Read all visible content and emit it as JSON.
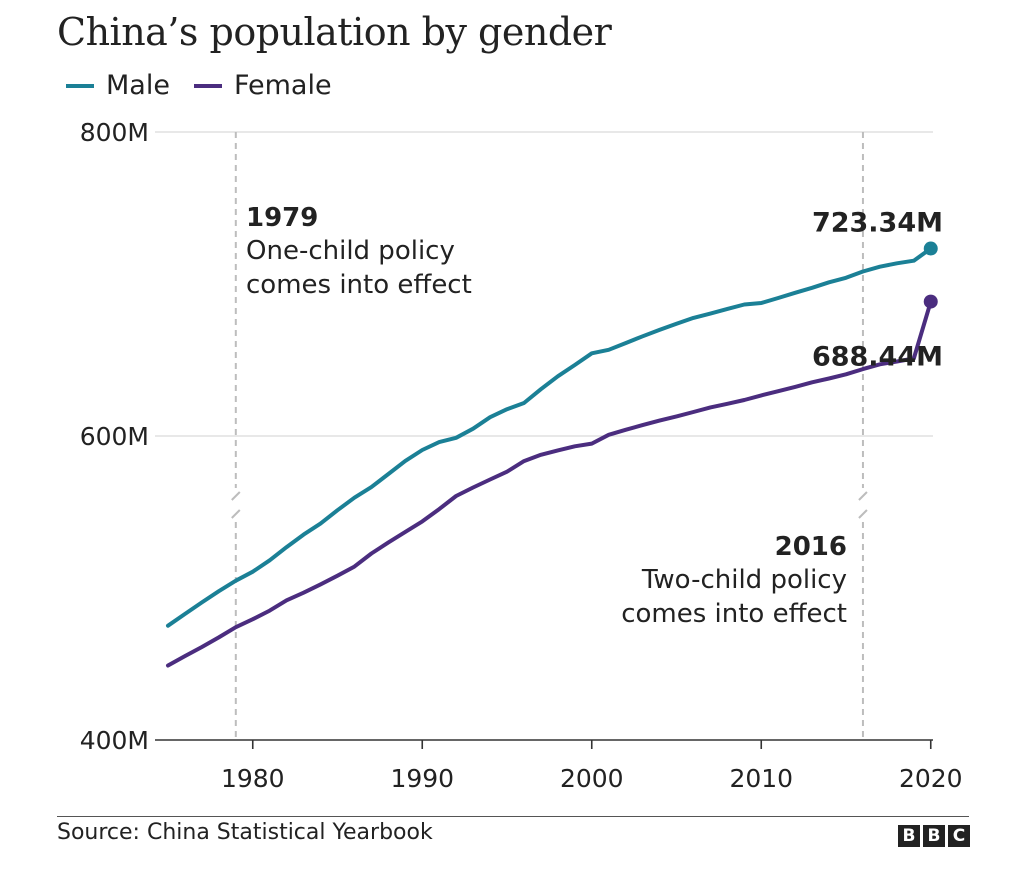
{
  "title": "China’s population by gender",
  "source": "Source: China Statistical Yearbook",
  "logo_letters": [
    "B",
    "B",
    "C"
  ],
  "colors": {
    "male": "#1b8096",
    "female": "#4b2d7f",
    "grid": "#d9d9d9",
    "annotation_line": "#bdbdbd",
    "text": "#222222"
  },
  "chart_data": {
    "type": "line",
    "ylim": [
      400,
      800
    ],
    "xlim": [
      1975,
      2020
    ],
    "y_ticks": [
      400,
      600,
      800
    ],
    "y_tick_labels": [
      "400M",
      "600M",
      "800M"
    ],
    "x_ticks": [
      1980,
      1990,
      2000,
      2010,
      2020
    ],
    "x_tick_labels": [
      "1980",
      "1990",
      "2000",
      "2010",
      "2020"
    ],
    "y_axis_break": true,
    "grid": true,
    "legend_position": "top-left",
    "series": [
      {
        "name": "Male",
        "key": "male",
        "x": [
          1975,
          1976,
          1977,
          1978,
          1979,
          1980,
          1981,
          1982,
          1983,
          1984,
          1985,
          1986,
          1987,
          1988,
          1989,
          1990,
          1991,
          1992,
          1993,
          1994,
          1995,
          1996,
          1997,
          1998,
          1999,
          2000,
          2001,
          2002,
          2003,
          2004,
          2005,
          2006,
          2007,
          2008,
          2009,
          2010,
          2011,
          2012,
          2013,
          2014,
          2015,
          2016,
          2017,
          2018,
          2019,
          2020
        ],
        "y": [
          475.2,
          482.9,
          490.5,
          497.9,
          504.8,
          510.7,
          518.2,
          526.9,
          535.1,
          542.4,
          551.2,
          559.4,
          566.4,
          575.0,
          583.6,
          590.8,
          596.0,
          598.8,
          604.8,
          612.4,
          617.6,
          621.7,
          630.8,
          639.3,
          646.7,
          654.4,
          656.7,
          661.1,
          665.6,
          669.8,
          673.9,
          677.7,
          680.5,
          683.6,
          686.5,
          687.5,
          690.8,
          694.2,
          697.5,
          701.1,
          704.1,
          708.2,
          711.4,
          713.6,
          715.3,
          723.34
        ]
      },
      {
        "name": "Female",
        "key": "female",
        "x": [
          1975,
          1976,
          1977,
          1978,
          1979,
          1980,
          1981,
          1982,
          1983,
          1984,
          1985,
          1986,
          1987,
          1988,
          1989,
          1990,
          1991,
          1992,
          1993,
          1994,
          1995,
          1996,
          1997,
          1998,
          1999,
          2000,
          2001,
          2002,
          2003,
          2004,
          2005,
          2006,
          2007,
          2008,
          2009,
          2010,
          2011,
          2012,
          2013,
          2014,
          2015,
          2016,
          2017,
          2018,
          2019,
          2020
        ],
        "y": [
          449.0,
          455.2,
          461.2,
          467.5,
          474.2,
          479.5,
          485.1,
          491.9,
          496.9,
          502.4,
          508.1,
          514.1,
          522.7,
          530.0,
          536.9,
          543.8,
          551.9,
          560.5,
          566.1,
          571.4,
          576.5,
          583.5,
          587.6,
          590.5,
          593.2,
          595.0,
          600.8,
          604.1,
          607.2,
          610.1,
          612.9,
          615.8,
          618.8,
          621.2,
          623.7,
          626.7,
          629.5,
          632.3,
          635.3,
          637.8,
          640.6,
          644.0,
          647.2,
          649.0,
          651.0,
          688.44
        ]
      }
    ],
    "end_labels": {
      "male": "723.34M",
      "female": "688.44M"
    },
    "annotations": [
      {
        "year": 1979,
        "heading": "1979",
        "lines": [
          "One-child policy",
          "comes into effect"
        ],
        "align": "left"
      },
      {
        "year": 2016,
        "heading": "2016",
        "lines": [
          "Two-child policy",
          "comes into effect"
        ],
        "align": "right"
      }
    ]
  }
}
